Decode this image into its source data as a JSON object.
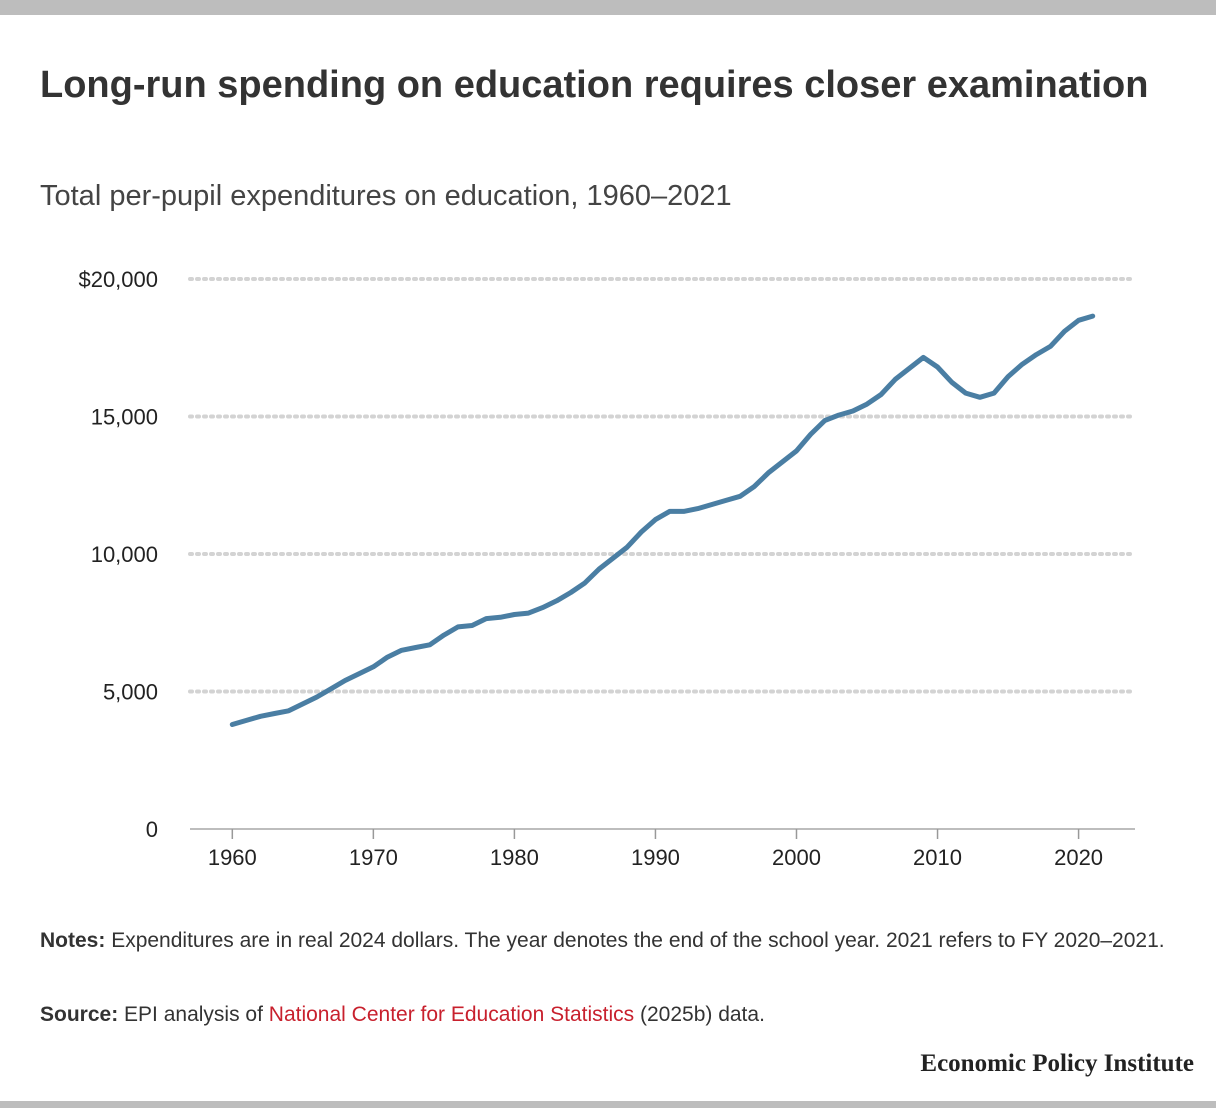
{
  "header": {
    "title": "Long-run spending on education requires closer examination",
    "subtitle": "Total per-pupil expenditures on education, 1960–2021"
  },
  "chart_data": {
    "type": "line",
    "title": "Long-run spending on education requires closer examination",
    "subtitle": "Total per-pupil expenditures on education, 1960–2021",
    "xlabel": "",
    "ylabel": "",
    "xlim": [
      1957,
      2024
    ],
    "ylim": [
      0,
      20000
    ],
    "x_ticks": [
      1960,
      1970,
      1980,
      1990,
      2000,
      2010,
      2020
    ],
    "y_ticks": [
      0,
      5000,
      10000,
      15000,
      20000
    ],
    "y_tick_labels": [
      "0",
      "5,000",
      "10,000",
      "15,000",
      "$20,000"
    ],
    "grid": "horizontal dotted",
    "series": [
      {
        "name": "Total per-pupil expenditures",
        "color": "#4a7ea3",
        "x": [
          1960,
          1961,
          1962,
          1963,
          1964,
          1965,
          1966,
          1967,
          1968,
          1969,
          1970,
          1971,
          1972,
          1973,
          1974,
          1975,
          1976,
          1977,
          1978,
          1979,
          1980,
          1981,
          1982,
          1983,
          1984,
          1985,
          1986,
          1987,
          1988,
          1989,
          1990,
          1991,
          1992,
          1993,
          1994,
          1995,
          1996,
          1997,
          1998,
          1999,
          2000,
          2001,
          2002,
          2003,
          2004,
          2005,
          2006,
          2007,
          2008,
          2009,
          2010,
          2011,
          2012,
          2013,
          2014,
          2015,
          2016,
          2017,
          2018,
          2019,
          2020,
          2021
        ],
        "values": [
          3800,
          3950,
          4100,
          4200,
          4300,
          4550,
          4800,
          5100,
          5400,
          5650,
          5900,
          6250,
          6500,
          6600,
          6700,
          7050,
          7350,
          7400,
          7650,
          7700,
          7800,
          7850,
          8050,
          8300,
          8600,
          8950,
          9450,
          9850,
          10250,
          10800,
          11250,
          11550,
          11550,
          11650,
          11800,
          11950,
          12100,
          12450,
          12950,
          13350,
          13750,
          14350,
          14850,
          15050,
          15200,
          15450,
          15800,
          16350,
          16750,
          17150,
          16800,
          16250,
          15850,
          15700,
          15850,
          16450,
          16900,
          17250,
          17550,
          18100,
          18500,
          18650
        ]
      }
    ]
  },
  "notes": {
    "label": "Notes:",
    "text": "Expenditures are in real 2024 dollars. The year denotes the end of the school year. 2021 refers to FY 2020–2021."
  },
  "source": {
    "label": "Source:",
    "prefix": "EPI analysis of",
    "link": "National Center for Education Statistics",
    "suffix": "(2025b) data."
  },
  "brand": "Economic Policy Institute",
  "colors": {
    "line": "#4a7ea3",
    "link": "#c8202d",
    "grid": "#d3d3d3",
    "frame": "#bdbdbd"
  }
}
